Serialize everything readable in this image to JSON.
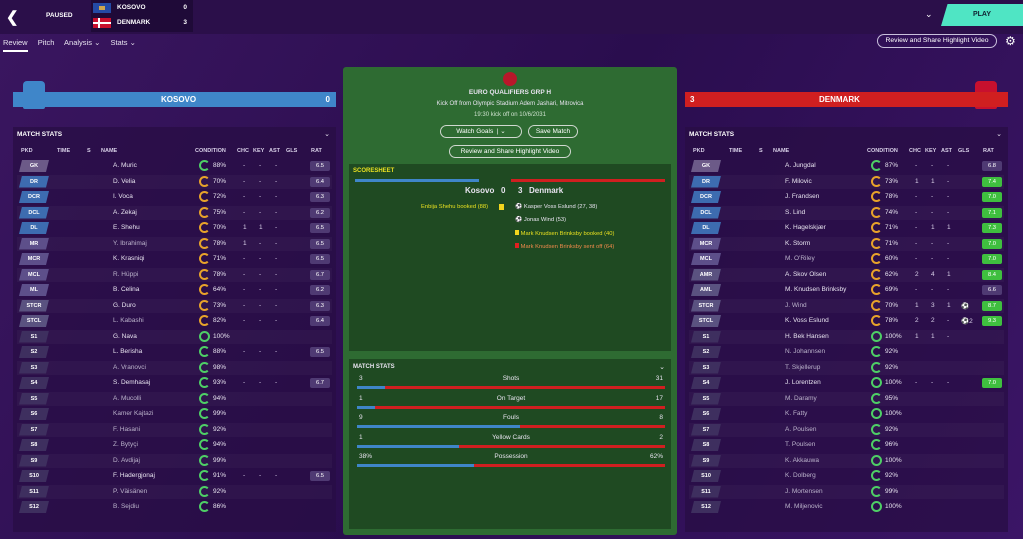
{
  "topbar": {
    "status": "PAUSED",
    "home": {
      "name": "KOSOVO",
      "score": "0"
    },
    "away": {
      "name": "DENMARK",
      "score": "3"
    },
    "play": "PLAY"
  },
  "tabs": [
    "Review",
    "Pitch",
    "Analysis",
    "Stats"
  ],
  "highlight_button": "Review and Share Highlight Video",
  "home_team": {
    "name": "KOSOVO",
    "score": "0",
    "color": "#3f86c9"
  },
  "away_team": {
    "name": "DENMARK",
    "score": "3",
    "color": "#d01f20"
  },
  "match_stats_title": "MATCH STATS",
  "columns": [
    "PKD",
    "TIME",
    "S",
    "NAME",
    "CONDITION",
    "CHC",
    "KEY",
    "AST",
    "GLS",
    "RAT"
  ],
  "home_players": [
    {
      "pos": "GK",
      "name": "A. Muric",
      "cond": "88%",
      "chc": "-",
      "key": "-",
      "ast": "-",
      "gls": "",
      "rat": "6.5",
      "sub": false
    },
    {
      "pos": "DR",
      "name": "D. Velia",
      "cond": "70%",
      "chc": "-",
      "key": "-",
      "ast": "-",
      "gls": "",
      "rat": "6.4",
      "sub": false
    },
    {
      "pos": "DCR",
      "name": "I. Voca",
      "cond": "72%",
      "chc": "-",
      "key": "-",
      "ast": "-",
      "gls": "",
      "rat": "6.3",
      "sub": false
    },
    {
      "pos": "DCL",
      "name": "A. Zekaj",
      "cond": "75%",
      "chc": "-",
      "key": "-",
      "ast": "-",
      "gls": "",
      "rat": "6.2",
      "sub": false
    },
    {
      "pos": "DL",
      "name": "E. Shehu",
      "cond": "70%",
      "chc": "1",
      "key": "1",
      "ast": "-",
      "gls": "",
      "rat": "6.5",
      "sub": false
    },
    {
      "pos": "MR",
      "name": "Y. Ibrahimaj",
      "cond": "78%",
      "chc": "1",
      "key": "-",
      "ast": "-",
      "gls": "",
      "rat": "6.5",
      "sub": true
    },
    {
      "pos": "MCR",
      "name": "K. Krasniqi",
      "cond": "71%",
      "chc": "-",
      "key": "-",
      "ast": "-",
      "gls": "",
      "rat": "6.5",
      "sub": false
    },
    {
      "pos": "MCL",
      "name": "R. Hüppi",
      "cond": "78%",
      "chc": "-",
      "key": "-",
      "ast": "-",
      "gls": "",
      "rat": "6.7",
      "sub": true
    },
    {
      "pos": "ML",
      "name": "B. Celina",
      "cond": "64%",
      "chc": "-",
      "key": "-",
      "ast": "-",
      "gls": "",
      "rat": "6.2",
      "sub": false
    },
    {
      "pos": "STCR",
      "name": "G. Duro",
      "cond": "73%",
      "chc": "-",
      "key": "-",
      "ast": "-",
      "gls": "",
      "rat": "6.3",
      "sub": false
    },
    {
      "pos": "STCL",
      "name": "L. Kabashi",
      "cond": "82%",
      "chc": "-",
      "key": "-",
      "ast": "-",
      "gls": "",
      "rat": "6.4",
      "sub": true
    },
    {
      "pos": "S1",
      "name": "G. Nava",
      "cond": "100%",
      "chc": "",
      "key": "",
      "ast": "",
      "gls": "",
      "rat": "",
      "sub": false
    },
    {
      "pos": "S2",
      "name": "L. Berisha",
      "cond": "88%",
      "chc": "-",
      "key": "-",
      "ast": "-",
      "gls": "",
      "rat": "6.5",
      "sub": false
    },
    {
      "pos": "S3",
      "name": "A. Vranovci",
      "cond": "98%",
      "chc": "",
      "key": "",
      "ast": "",
      "gls": "",
      "rat": "",
      "sub": true
    },
    {
      "pos": "S4",
      "name": "S. Demhasaj",
      "cond": "93%",
      "chc": "-",
      "key": "-",
      "ast": "-",
      "gls": "",
      "rat": "6.7",
      "sub": false
    },
    {
      "pos": "S5",
      "name": "A. Mucolli",
      "cond": "94%",
      "chc": "",
      "key": "",
      "ast": "",
      "gls": "",
      "rat": "",
      "sub": true
    },
    {
      "pos": "S6",
      "name": "Kamer Kajtazi",
      "cond": "99%",
      "chc": "",
      "key": "",
      "ast": "",
      "gls": "",
      "rat": "",
      "sub": true
    },
    {
      "pos": "S7",
      "name": "F. Hasani",
      "cond": "92%",
      "chc": "",
      "key": "",
      "ast": "",
      "gls": "",
      "rat": "",
      "sub": true
    },
    {
      "pos": "S8",
      "name": "Z. Bytyçi",
      "cond": "94%",
      "chc": "",
      "key": "",
      "ast": "",
      "gls": "",
      "rat": "",
      "sub": true
    },
    {
      "pos": "S9",
      "name": "D. Avdijaj",
      "cond": "99%",
      "chc": "",
      "key": "",
      "ast": "",
      "gls": "",
      "rat": "",
      "sub": true
    },
    {
      "pos": "S10",
      "name": "F. Hadergjonaj",
      "cond": "91%",
      "chc": "-",
      "key": "-",
      "ast": "-",
      "gls": "",
      "rat": "6.5",
      "sub": false
    },
    {
      "pos": "S11",
      "name": "P. Väisänen",
      "cond": "92%",
      "chc": "",
      "key": "",
      "ast": "",
      "gls": "",
      "rat": "",
      "sub": true
    },
    {
      "pos": "S12",
      "name": "B. Sejdiu",
      "cond": "86%",
      "chc": "",
      "key": "",
      "ast": "",
      "gls": "",
      "rat": "",
      "sub": true
    }
  ],
  "away_players": [
    {
      "pos": "GK",
      "name": "A. Jungdal",
      "cond": "87%",
      "chc": "-",
      "key": "-",
      "ast": "-",
      "gls": "",
      "rat": "6.8",
      "sub": false
    },
    {
      "pos": "DR",
      "name": "F. Milovic",
      "cond": "73%",
      "chc": "1",
      "key": "1",
      "ast": "-",
      "gls": "",
      "rat": "7.4",
      "sub": false
    },
    {
      "pos": "DCR",
      "name": "J. Frandsen",
      "cond": "78%",
      "chc": "-",
      "key": "-",
      "ast": "-",
      "gls": "",
      "rat": "7.0",
      "sub": false
    },
    {
      "pos": "DCL",
      "name": "S. Lind",
      "cond": "74%",
      "chc": "-",
      "key": "-",
      "ast": "-",
      "gls": "",
      "rat": "7.1",
      "sub": false
    },
    {
      "pos": "DL",
      "name": "K. Hagelskjær",
      "cond": "71%",
      "chc": "-",
      "key": "1",
      "ast": "1",
      "gls": "",
      "rat": "7.3",
      "sub": false
    },
    {
      "pos": "MCR",
      "name": "K. Storm",
      "cond": "71%",
      "chc": "-",
      "key": "-",
      "ast": "-",
      "gls": "",
      "rat": "7.0",
      "sub": false
    },
    {
      "pos": "MCL",
      "name": "M. O'Riley",
      "cond": "60%",
      "chc": "-",
      "key": "-",
      "ast": "-",
      "gls": "",
      "rat": "7.0",
      "sub": true
    },
    {
      "pos": "AMR",
      "name": "A. Skov Olsen",
      "cond": "62%",
      "chc": "2",
      "key": "4",
      "ast": "1",
      "gls": "",
      "rat": "8.4",
      "sub": false
    },
    {
      "pos": "AML",
      "name": "M. Knudsen Brinksby",
      "cond": "69%",
      "chc": "-",
      "key": "-",
      "ast": "-",
      "gls": "",
      "rat": "6.6",
      "sub": false
    },
    {
      "pos": "STCR",
      "name": "J. Wind",
      "cond": "70%",
      "chc": "1",
      "key": "3",
      "ast": "1",
      "gls": "⚽",
      "rat": "8.7",
      "sub": true
    },
    {
      "pos": "STCL",
      "name": "K. Voss Eslund",
      "cond": "78%",
      "chc": "2",
      "key": "2",
      "ast": "-",
      "gls": "⚽2",
      "rat": "9.3",
      "sub": false
    },
    {
      "pos": "S1",
      "name": "H. Bek Hansen",
      "cond": "100%",
      "chc": "1",
      "key": "1",
      "ast": "-",
      "gls": "",
      "rat": "",
      "sub": false
    },
    {
      "pos": "S2",
      "name": "N. Johannsen",
      "cond": "92%",
      "chc": "",
      "key": "",
      "ast": "",
      "gls": "",
      "rat": "",
      "sub": true
    },
    {
      "pos": "S3",
      "name": "T. Skjellerup",
      "cond": "92%",
      "chc": "",
      "key": "",
      "ast": "",
      "gls": "",
      "rat": "",
      "sub": true
    },
    {
      "pos": "S4",
      "name": "J. Lorentzen",
      "cond": "100%",
      "chc": "-",
      "key": "-",
      "ast": "-",
      "gls": "",
      "rat": "7.0",
      "sub": false
    },
    {
      "pos": "S5",
      "name": "M. Daramy",
      "cond": "95%",
      "chc": "",
      "key": "",
      "ast": "",
      "gls": "",
      "rat": "",
      "sub": true
    },
    {
      "pos": "S6",
      "name": "K. Fatty",
      "cond": "100%",
      "chc": "",
      "key": "",
      "ast": "",
      "gls": "",
      "rat": "",
      "sub": true
    },
    {
      "pos": "S7",
      "name": "A. Poulsen",
      "cond": "92%",
      "chc": "",
      "key": "",
      "ast": "",
      "gls": "",
      "rat": "",
      "sub": true
    },
    {
      "pos": "S8",
      "name": "T. Poulsen",
      "cond": "96%",
      "chc": "",
      "key": "",
      "ast": "",
      "gls": "",
      "rat": "",
      "sub": true
    },
    {
      "pos": "S9",
      "name": "K. Akkauwa",
      "cond": "100%",
      "chc": "",
      "key": "",
      "ast": "",
      "gls": "",
      "rat": "",
      "sub": true
    },
    {
      "pos": "S10",
      "name": "K. Dolberg",
      "cond": "92%",
      "chc": "",
      "key": "",
      "ast": "",
      "gls": "",
      "rat": "",
      "sub": true
    },
    {
      "pos": "S11",
      "name": "J. Mortensen",
      "cond": "99%",
      "chc": "",
      "key": "",
      "ast": "",
      "gls": "",
      "rat": "",
      "sub": true
    },
    {
      "pos": "S12",
      "name": "M. Miljenovic",
      "cond": "100%",
      "chc": "",
      "key": "",
      "ast": "",
      "gls": "",
      "rat": "",
      "sub": true
    }
  ],
  "center": {
    "competition": "EURO QUALIFIERS GRP H",
    "venue": "Kick Off from Olympic Stadium Adem Jashari, Mitrovica",
    "time": "19:30 kick off on 10/6/2031",
    "watch_goals": "Watch Goals",
    "save_match": "Save Match",
    "highlight": "Review and Share Highlight Video",
    "scoresheet_title": "SCORESHEET",
    "score_home": "Kosovo",
    "score_num_home": "0",
    "score_num_away": "3",
    "score_away": "Denmark",
    "home_events": [
      "Enbija Shehu booked (88)"
    ],
    "away_events": [
      "Kasper Voss Eslund (27, 38)",
      "Jonas Wind (53)",
      "Mark Knudsen Brinksby booked (40)",
      "Mark Knudsen Brinksby sent off (64)"
    ],
    "stats_title": "MATCH STATS",
    "stats": [
      {
        "label": "Shots",
        "home": "3",
        "away": "31",
        "home_frac": 0.09
      },
      {
        "label": "On Target",
        "home": "1",
        "away": "17",
        "home_frac": 0.06
      },
      {
        "label": "Fouls",
        "home": "9",
        "away": "8",
        "home_frac": 0.53
      },
      {
        "label": "Yellow Cards",
        "home": "1",
        "away": "2",
        "home_frac": 0.33
      },
      {
        "label": "Possession",
        "home": "38%",
        "away": "62%",
        "home_frac": 0.38
      }
    ]
  },
  "colors": {
    "pos_gk": "#6c5a88",
    "pos_def": "#3d6cb0",
    "pos_mid": "#5d4f8a",
    "pos_att": "#5a5280",
    "pos_sub": "#3e2f5f",
    "accent": "#4fe5c4",
    "rating_high": "#3fbf3f"
  }
}
